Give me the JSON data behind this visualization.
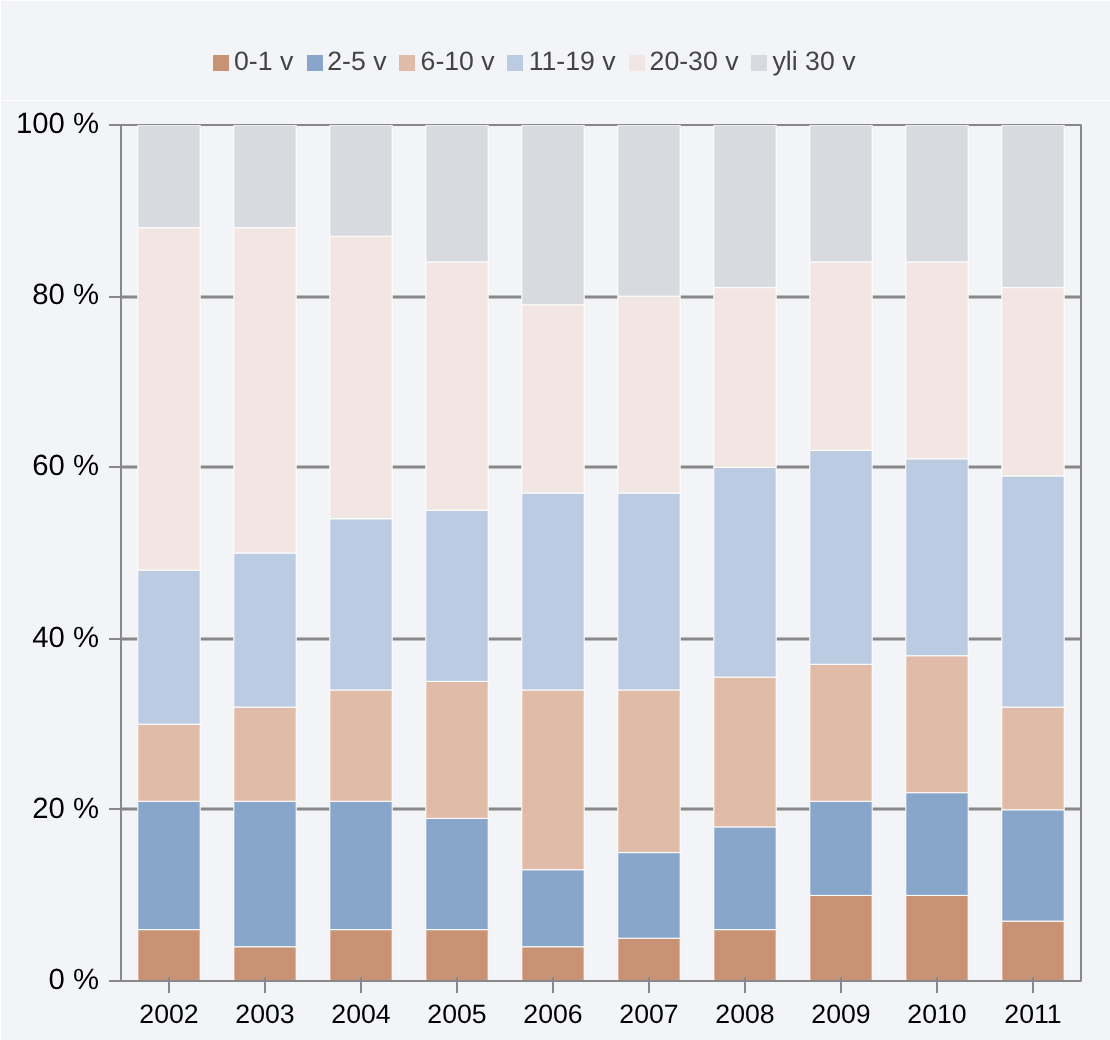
{
  "chart_data": {
    "type": "bar",
    "stacked": true,
    "categories": [
      "2002",
      "2003",
      "2004",
      "2005",
      "2006",
      "2007",
      "2008",
      "2009",
      "2010",
      "2011"
    ],
    "series": [
      {
        "name": "0-1 v",
        "color": "#c89375",
        "values": [
          6,
          4,
          6,
          6,
          4,
          5,
          6,
          10,
          10,
          7
        ]
      },
      {
        "name": "2-5 v",
        "color": "#87a6c9",
        "values": [
          15,
          17,
          15,
          13,
          9,
          10,
          12,
          11,
          12,
          13
        ]
      },
      {
        "name": "6-10 v",
        "color": "#dfbba8",
        "values": [
          9,
          11,
          13,
          16,
          21,
          19,
          17.5,
          16,
          16,
          12
        ]
      },
      {
        "name": "11-19 v",
        "color": "#bacbe2",
        "values": [
          18,
          18,
          20,
          20,
          23,
          23,
          24.5,
          25,
          23,
          27
        ]
      },
      {
        "name": "20-30 v",
        "color": "#f2e6e2",
        "values": [
          40,
          38,
          33,
          29,
          22,
          23,
          21,
          22,
          23,
          22
        ]
      },
      {
        "name": "yli 30 v",
        "color": "#d9dadf",
        "values": [
          12,
          12,
          13,
          16,
          21,
          20,
          19,
          16,
          16,
          19
        ]
      }
    ],
    "ylim": [
      0,
      100
    ],
    "yticks": [
      {
        "value": 0,
        "label": "0 %"
      },
      {
        "value": 20,
        "label": "20 %"
      },
      {
        "value": 40,
        "label": "40 %"
      },
      {
        "value": 60,
        "label": "60 %"
      },
      {
        "value": 80,
        "label": "80 %"
      },
      {
        "value": 100,
        "label": "100 %"
      }
    ],
    "grid": "y",
    "legend": "top"
  }
}
